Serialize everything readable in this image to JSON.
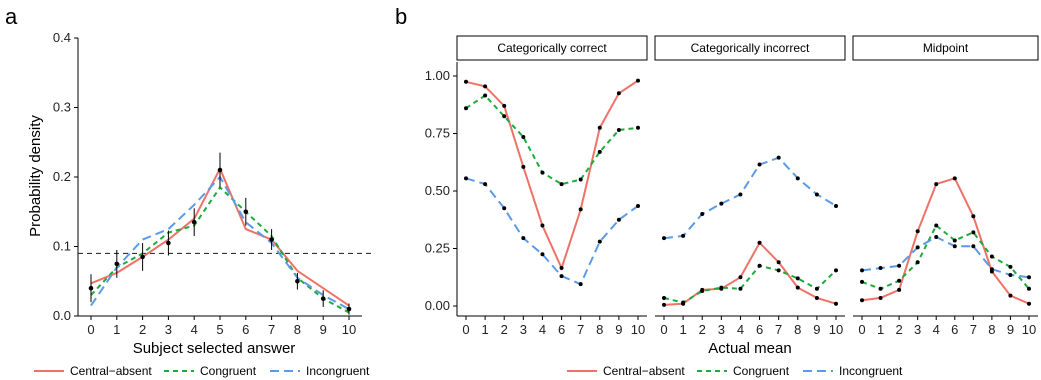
{
  "panels": {
    "a": {
      "label": "a"
    },
    "b": {
      "label": "b"
    }
  },
  "colors": {
    "central_absent": "#F07167",
    "congruent": "#1EAA3C",
    "incongruent": "#5B9BE6",
    "points": "#000000"
  },
  "chart_data": [
    {
      "type": "line",
      "panel": "a",
      "xlabel": "Subject selected answer",
      "ylabel": "Probability density",
      "x": [
        0,
        1,
        2,
        3,
        4,
        5,
        6,
        7,
        8,
        9,
        10
      ],
      "xticks": [
        "0",
        "1",
        "2",
        "3",
        "4",
        "5",
        "6",
        "7",
        "8",
        "9",
        "10"
      ],
      "ylim": [
        0,
        0.4
      ],
      "yticks": [
        "0.0",
        "0.1",
        "0.2",
        "0.3",
        "0.4"
      ],
      "yticks_values": [
        0,
        0.1,
        0.2,
        0.3,
        0.4
      ],
      "reference_line": 0.09,
      "points": {
        "values": [
          0.04,
          0.075,
          0.085,
          0.105,
          0.135,
          0.21,
          0.15,
          0.11,
          0.05,
          0.025,
          0.01
        ],
        "err": [
          0.02,
          0.02,
          0.02,
          0.018,
          0.02,
          0.025,
          0.02,
          0.015,
          0.012,
          0.012,
          0.008
        ]
      },
      "series": [
        {
          "name": "Central-absent",
          "color_key": "central_absent",
          "dash": "",
          "values": [
            0.047,
            0.062,
            0.085,
            0.11,
            0.14,
            0.212,
            0.125,
            0.11,
            0.065,
            0.04,
            0.015
          ]
        },
        {
          "name": "Congruent",
          "color_key": "congruent",
          "dash": "5,4",
          "values": [
            0.03,
            0.07,
            0.09,
            0.12,
            0.13,
            0.185,
            0.15,
            0.115,
            0.055,
            0.025,
            0.005
          ]
        },
        {
          "name": "Incongruent",
          "color_key": "incongruent",
          "dash": "9,5",
          "values": [
            0.015,
            0.07,
            0.11,
            0.125,
            0.16,
            0.2,
            0.135,
            0.105,
            0.055,
            0.03,
            0.01
          ]
        }
      ]
    },
    {
      "type": "line",
      "panel": "b",
      "xlabel": "Actual mean",
      "ylabel": "",
      "ylim": [
        0,
        1.0
      ],
      "yticks": [
        "0.00",
        "0.25",
        "0.50",
        "0.75",
        "1.00"
      ],
      "yticks_values": [
        0,
        0.25,
        0.5,
        0.75,
        1.0
      ],
      "facets": [
        {
          "title": "Categorically correct",
          "x": [
            0,
            1,
            2,
            3,
            4,
            6,
            7,
            8,
            9,
            10
          ],
          "xticks": [
            "0",
            "1",
            "2",
            "3",
            "4",
            "6",
            "7",
            "8",
            "9",
            "10"
          ],
          "series": [
            {
              "name": "Central-absent",
              "color_key": "central_absent",
              "dash": "",
              "values": [
                0.975,
                0.955,
                0.87,
                0.605,
                0.35,
                0.165,
                0.42,
                0.775,
                0.925,
                0.98
              ]
            },
            {
              "name": "Congruent",
              "color_key": "congruent",
              "dash": "5,4",
              "values": [
                0.86,
                0.915,
                0.825,
                0.735,
                0.58,
                0.53,
                0.55,
                0.67,
                0.765,
                0.775
              ]
            },
            {
              "name": "Incongruent",
              "color_key": "incongruent",
              "dash": "9,5",
              "values": [
                0.555,
                0.53,
                0.425,
                0.295,
                0.225,
                0.13,
                0.095,
                0.28,
                0.375,
                0.435
              ]
            }
          ]
        },
        {
          "title": "Categorically incorrect",
          "x": [
            0,
            1,
            2,
            3,
            4,
            6,
            7,
            8,
            9,
            10
          ],
          "xticks": [
            "0",
            "1",
            "2",
            "3",
            "4",
            "6",
            "7",
            "8",
            "9",
            "10"
          ],
          "series": [
            {
              "name": "Central-absent",
              "color_key": "central_absent",
              "dash": "",
              "values": [
                0.005,
                0.01,
                0.07,
                0.075,
                0.125,
                0.275,
                0.19,
                0.08,
                0.035,
                0.01
              ]
            },
            {
              "name": "Congruent",
              "color_key": "congruent",
              "dash": "5,4",
              "values": [
                0.035,
                0.015,
                0.065,
                0.08,
                0.075,
                0.175,
                0.155,
                0.12,
                0.075,
                0.155
              ]
            },
            {
              "name": "Incongruent",
              "color_key": "incongruent",
              "dash": "9,5",
              "values": [
                0.295,
                0.305,
                0.4,
                0.445,
                0.485,
                0.615,
                0.645,
                0.555,
                0.485,
                0.435
              ]
            }
          ]
        },
        {
          "title": "Midpoint",
          "x": [
            0,
            1,
            2,
            3,
            4,
            6,
            7,
            8,
            9,
            10
          ],
          "xticks": [
            "0",
            "1",
            "2",
            "3",
            "4",
            "6",
            "7",
            "8",
            "9",
            "10"
          ],
          "series": [
            {
              "name": "Central-absent",
              "color_key": "central_absent",
              "dash": "",
              "values": [
                0.025,
                0.035,
                0.07,
                0.325,
                0.53,
                0.555,
                0.39,
                0.15,
                0.045,
                0.01
              ]
            },
            {
              "name": "Congruent",
              "color_key": "congruent",
              "dash": "5,4",
              "values": [
                0.105,
                0.075,
                0.11,
                0.19,
                0.35,
                0.285,
                0.32,
                0.215,
                0.17,
                0.075
              ]
            },
            {
              "name": "Incongruent",
              "color_key": "incongruent",
              "dash": "9,5",
              "values": [
                0.155,
                0.165,
                0.175,
                0.255,
                0.3,
                0.26,
                0.26,
                0.16,
                0.135,
                0.125
              ]
            }
          ]
        }
      ]
    }
  ],
  "legend": {
    "placement": "bottom",
    "items": [
      {
        "label": "Central−absent",
        "color_key": "central_absent",
        "dash": ""
      },
      {
        "label": "Congruent",
        "color_key": "congruent",
        "dash": "5,4"
      },
      {
        "label": "Incongruent",
        "color_key": "incongruent",
        "dash": "9,5"
      }
    ]
  }
}
